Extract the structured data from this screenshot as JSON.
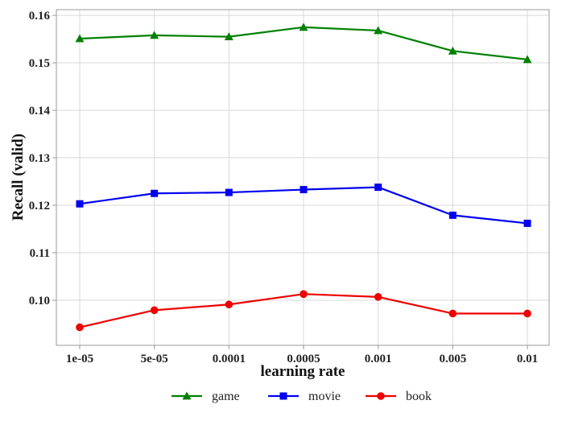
{
  "chart_data": {
    "type": "line",
    "categories": [
      "1e-05",
      "5e-05",
      "0.0001",
      "0.0005",
      "0.001",
      "0.005",
      "0.01"
    ],
    "series": [
      {
        "name": "game",
        "color": "#008000",
        "marker": "triangle",
        "values": [
          0.1551,
          0.1558,
          0.1555,
          0.1575,
          0.1568,
          0.1525,
          0.1507
        ]
      },
      {
        "name": "movie",
        "color": "#0000ee",
        "marker": "square",
        "values": [
          0.1203,
          0.1225,
          0.1227,
          0.1233,
          0.1238,
          0.1179,
          0.1162
        ]
      },
      {
        "name": "book",
        "color": "#ee0000",
        "marker": "circle",
        "values": [
          0.0943,
          0.0979,
          0.0991,
          0.1013,
          0.1007,
          0.0972,
          0.0972
        ]
      }
    ],
    "xlabel": "learning rate",
    "ylabel": "Recall (valid)",
    "ylim": [
      0.0905,
      0.1612
    ],
    "yticks": [
      0.1,
      0.11,
      0.12,
      0.13,
      0.14,
      0.15,
      0.16
    ],
    "ytick_labels": [
      "0.10",
      "0.11",
      "0.12",
      "0.13",
      "0.14",
      "0.15",
      "0.16"
    ],
    "grid": true,
    "legend": "bottom-center"
  }
}
